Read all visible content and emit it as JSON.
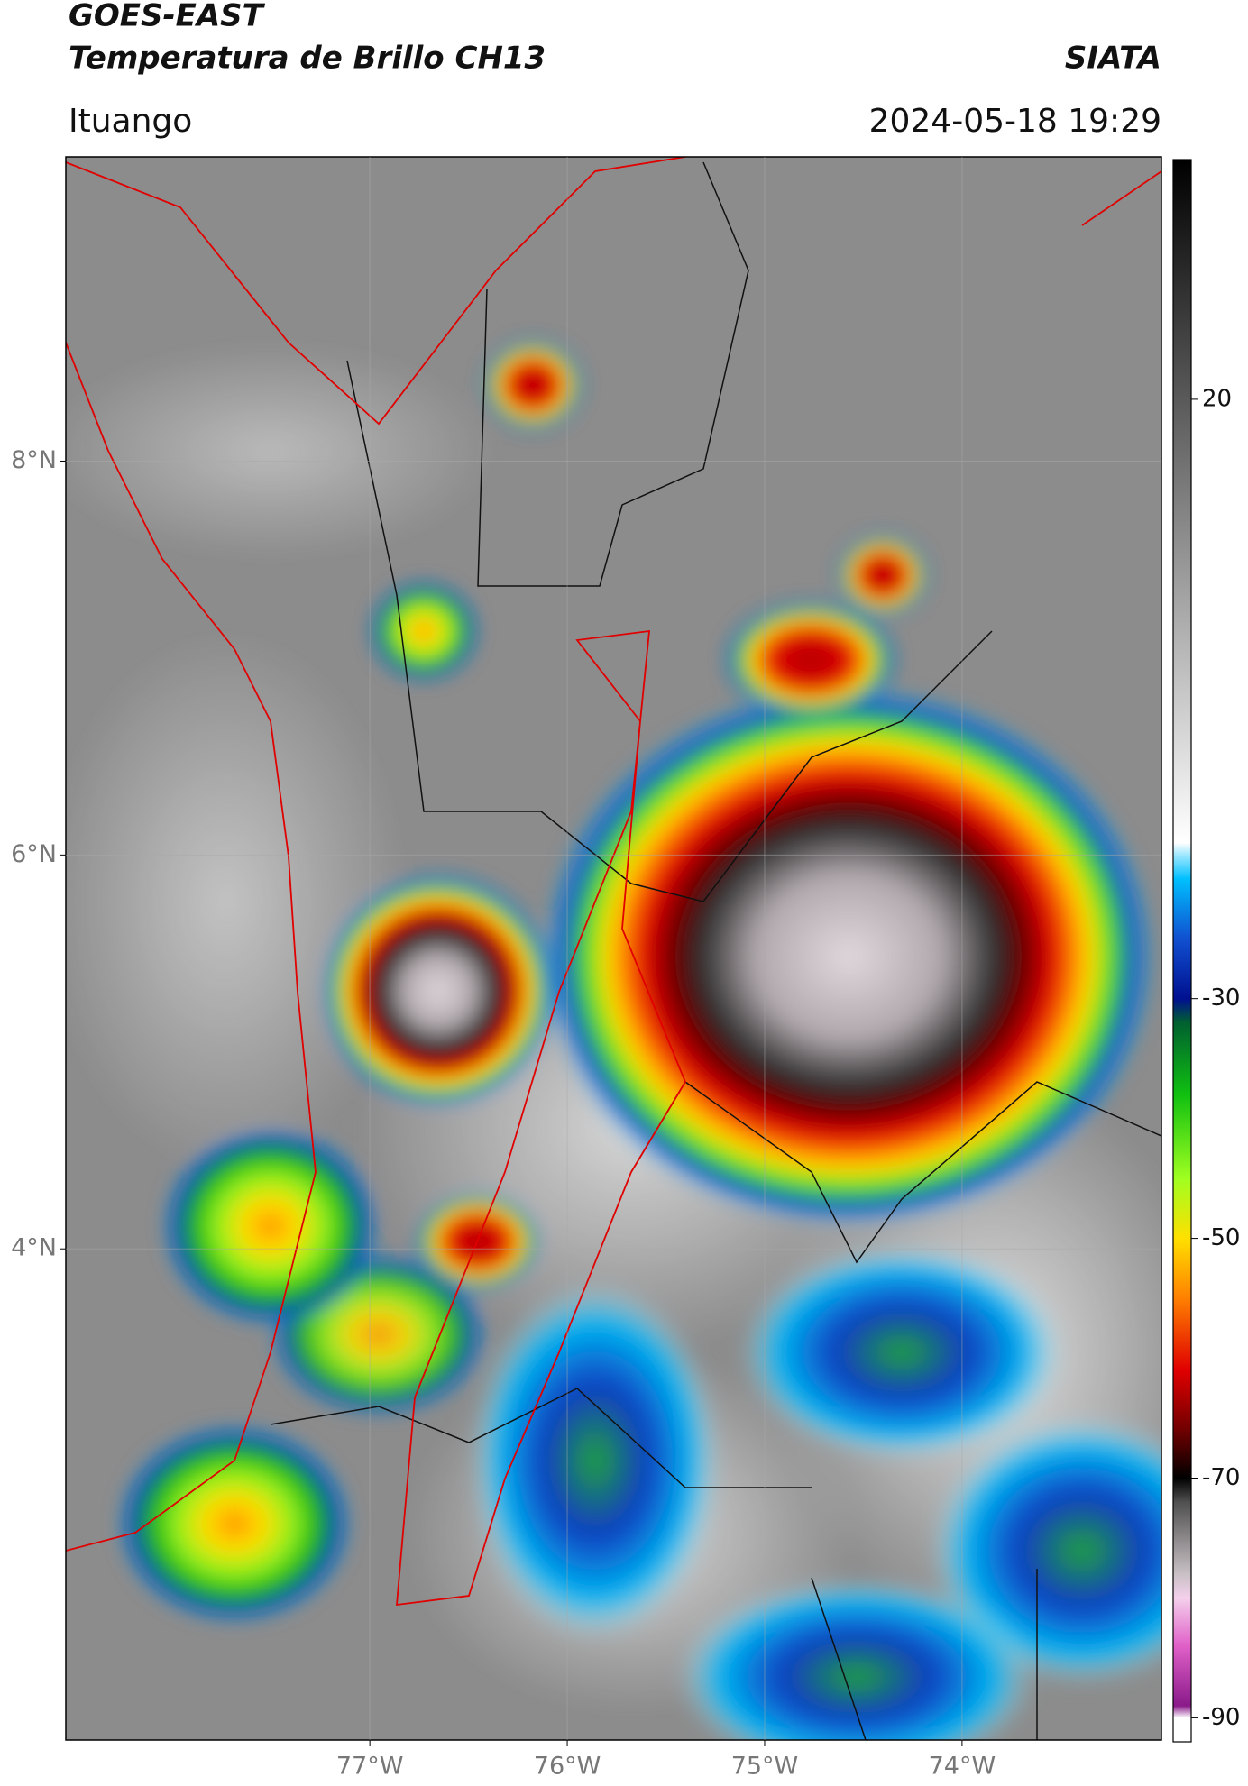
{
  "header": {
    "title": "GOES-EAST",
    "subtitle": "Temperatura de Brillo CH13",
    "brand": "SIATA",
    "location": "Ituango",
    "datetime": "2024-05-18 19:29"
  },
  "map": {
    "xlim": [
      -78.54,
      -72.99
    ],
    "ylim": [
      1.506,
      9.545
    ],
    "xticks": [
      {
        "value": -77,
        "label": "77°W"
      },
      {
        "value": -76,
        "label": "76°W"
      },
      {
        "value": -75,
        "label": "75°W"
      },
      {
        "value": -74,
        "label": "74°W"
      }
    ],
    "yticks": [
      {
        "value": 8,
        "label": "8°N"
      },
      {
        "value": 6,
        "label": "6°N"
      },
      {
        "value": 4,
        "label": "4°N"
      }
    ],
    "grid": true
  },
  "colorbar": {
    "lim": [
      -92,
      40
    ],
    "ticks": [
      20,
      -30,
      -50,
      -70,
      -90
    ],
    "stops": [
      {
        "value": -92,
        "color": "#ffffff"
      },
      {
        "value": -90,
        "color": "#ffffff"
      },
      {
        "value": -89,
        "color": "#8a1a8a"
      },
      {
        "value": -84,
        "color": "#e060c8"
      },
      {
        "value": -80,
        "color": "#f4d0ec"
      },
      {
        "value": -78,
        "color": "#c8c0c4"
      },
      {
        "value": -72,
        "color": "#505050"
      },
      {
        "value": -70,
        "color": "#000000"
      },
      {
        "value": -66,
        "color": "#700000"
      },
      {
        "value": -61,
        "color": "#e00000"
      },
      {
        "value": -55,
        "color": "#ff8000"
      },
      {
        "value": -50,
        "color": "#ffe000"
      },
      {
        "value": -45,
        "color": "#a0ff20"
      },
      {
        "value": -38,
        "color": "#10c010"
      },
      {
        "value": -32,
        "color": "#006030"
      },
      {
        "value": -30,
        "color": "#001090"
      },
      {
        "value": -25,
        "color": "#1050d0"
      },
      {
        "value": -20,
        "color": "#00c0ff"
      },
      {
        "value": -18,
        "color": "#a0e8ff"
      },
      {
        "value": -17,
        "color": "#ffffff"
      },
      {
        "value": 40,
        "color": "#000000"
      }
    ]
  }
}
